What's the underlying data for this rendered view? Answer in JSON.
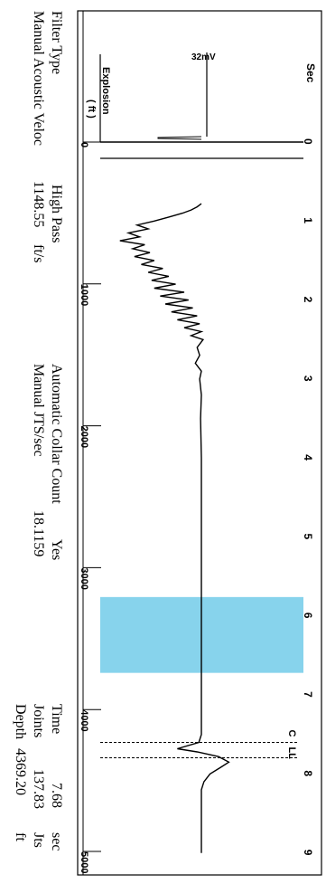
{
  "chart_data": {
    "type": "line",
    "x_axis_label": "Sec",
    "x_ticks": [
      "0",
      "1",
      "2",
      "3",
      "4",
      "5",
      "6",
      "7",
      "8",
      "9"
    ],
    "xlim": [
      0,
      9
    ],
    "depth_axis_label": "( ft )",
    "depth_ticks": [
      "0",
      "1000",
      "2000",
      "3000",
      "4000",
      "5000"
    ],
    "depth_range": [
      0,
      5000
    ],
    "explosion_label": "Explosion",
    "scale_label": "32mV",
    "marker_labels": {
      "collar": "C",
      "liquid_level": "LL"
    },
    "highlight": {
      "x_range": [
        5.76,
        6.72
      ],
      "color": "#87d3ec"
    },
    "highlight_range_seconds": [
      5.76,
      6.72
    ],
    "markers": {
      "collar_seconds": 7.6,
      "liquid_level_seconds": 7.68
    },
    "series": [
      {
        "points": [
          [
            0.78,
            0.0
          ],
          [
            0.82,
            0.05
          ],
          [
            0.86,
            0.12
          ],
          [
            0.9,
            0.22
          ],
          [
            0.95,
            0.38
          ],
          [
            1.0,
            0.55
          ],
          [
            1.05,
            0.75
          ],
          [
            1.1,
            0.62
          ],
          [
            1.15,
            0.85
          ],
          [
            1.2,
            0.72
          ],
          [
            1.25,
            0.95
          ],
          [
            1.3,
            0.66
          ],
          [
            1.35,
            0.8
          ],
          [
            1.4,
            0.6
          ],
          [
            1.45,
            0.78
          ],
          [
            1.5,
            0.55
          ],
          [
            1.55,
            0.7
          ],
          [
            1.6,
            0.45
          ],
          [
            1.65,
            0.62
          ],
          [
            1.7,
            0.38
          ],
          [
            1.75,
            0.58
          ],
          [
            1.8,
            0.3
          ],
          [
            1.85,
            0.55
          ],
          [
            1.9,
            0.2
          ],
          [
            1.95,
            0.48
          ],
          [
            2.0,
            0.15
          ],
          [
            2.05,
            0.42
          ],
          [
            2.1,
            0.1
          ],
          [
            2.15,
            0.35
          ],
          [
            2.2,
            0.05
          ],
          [
            2.25,
            0.28
          ],
          [
            2.3,
            0.02
          ],
          [
            2.35,
            0.2
          ],
          [
            2.4,
            0.0
          ],
          [
            2.45,
            0.12
          ],
          [
            2.5,
            -0.02
          ],
          [
            2.6,
            0.05
          ],
          [
            2.7,
            0.02
          ],
          [
            2.8,
            0.07
          ],
          [
            2.9,
            0.0
          ],
          [
            3.0,
            0.02
          ],
          [
            3.2,
            0.0
          ],
          [
            3.5,
            0.01
          ],
          [
            4.0,
            0.0
          ],
          [
            5.0,
            0.0
          ],
          [
            6.0,
            0.0
          ],
          [
            7.0,
            0.0
          ],
          [
            7.5,
            0.0
          ],
          [
            7.6,
            0.03
          ],
          [
            7.68,
            0.28
          ],
          [
            7.72,
            0.05
          ],
          [
            7.78,
            -0.2
          ],
          [
            7.85,
            -0.32
          ],
          [
            7.92,
            -0.22
          ],
          [
            8.0,
            -0.1
          ],
          [
            8.1,
            -0.03
          ],
          [
            8.2,
            0.0
          ],
          [
            8.5,
            0.0
          ],
          [
            9.0,
            0.0
          ]
        ]
      }
    ],
    "explosion_pulse": {
      "x": 0.0,
      "amplitude": 0.35
    }
  },
  "info": {
    "filter_type_label": "Filter Type",
    "filter_type_value": "High Pass",
    "manual_velocity_label": "Manual Acoustic Veloc",
    "manual_velocity_value": "1148.55",
    "manual_velocity_unit": "ft/s",
    "auto_collar_label": "Automatic Collar Count",
    "auto_collar_value": "Yes",
    "manual_jts_label": "Manual JTS/sec",
    "manual_jts_value": "18.1159",
    "time_label": "Time",
    "time_value": "7.68",
    "time_unit": "sec",
    "joints_label": "Joints",
    "joints_value": "137.83",
    "joints_unit": "Jts",
    "depth_label": "Depth",
    "depth_value": "4369.20",
    "depth_unit": "ft"
  },
  "colors": {
    "trace": "#000000",
    "highlight": "#87d3ec",
    "frame": "#000000"
  }
}
